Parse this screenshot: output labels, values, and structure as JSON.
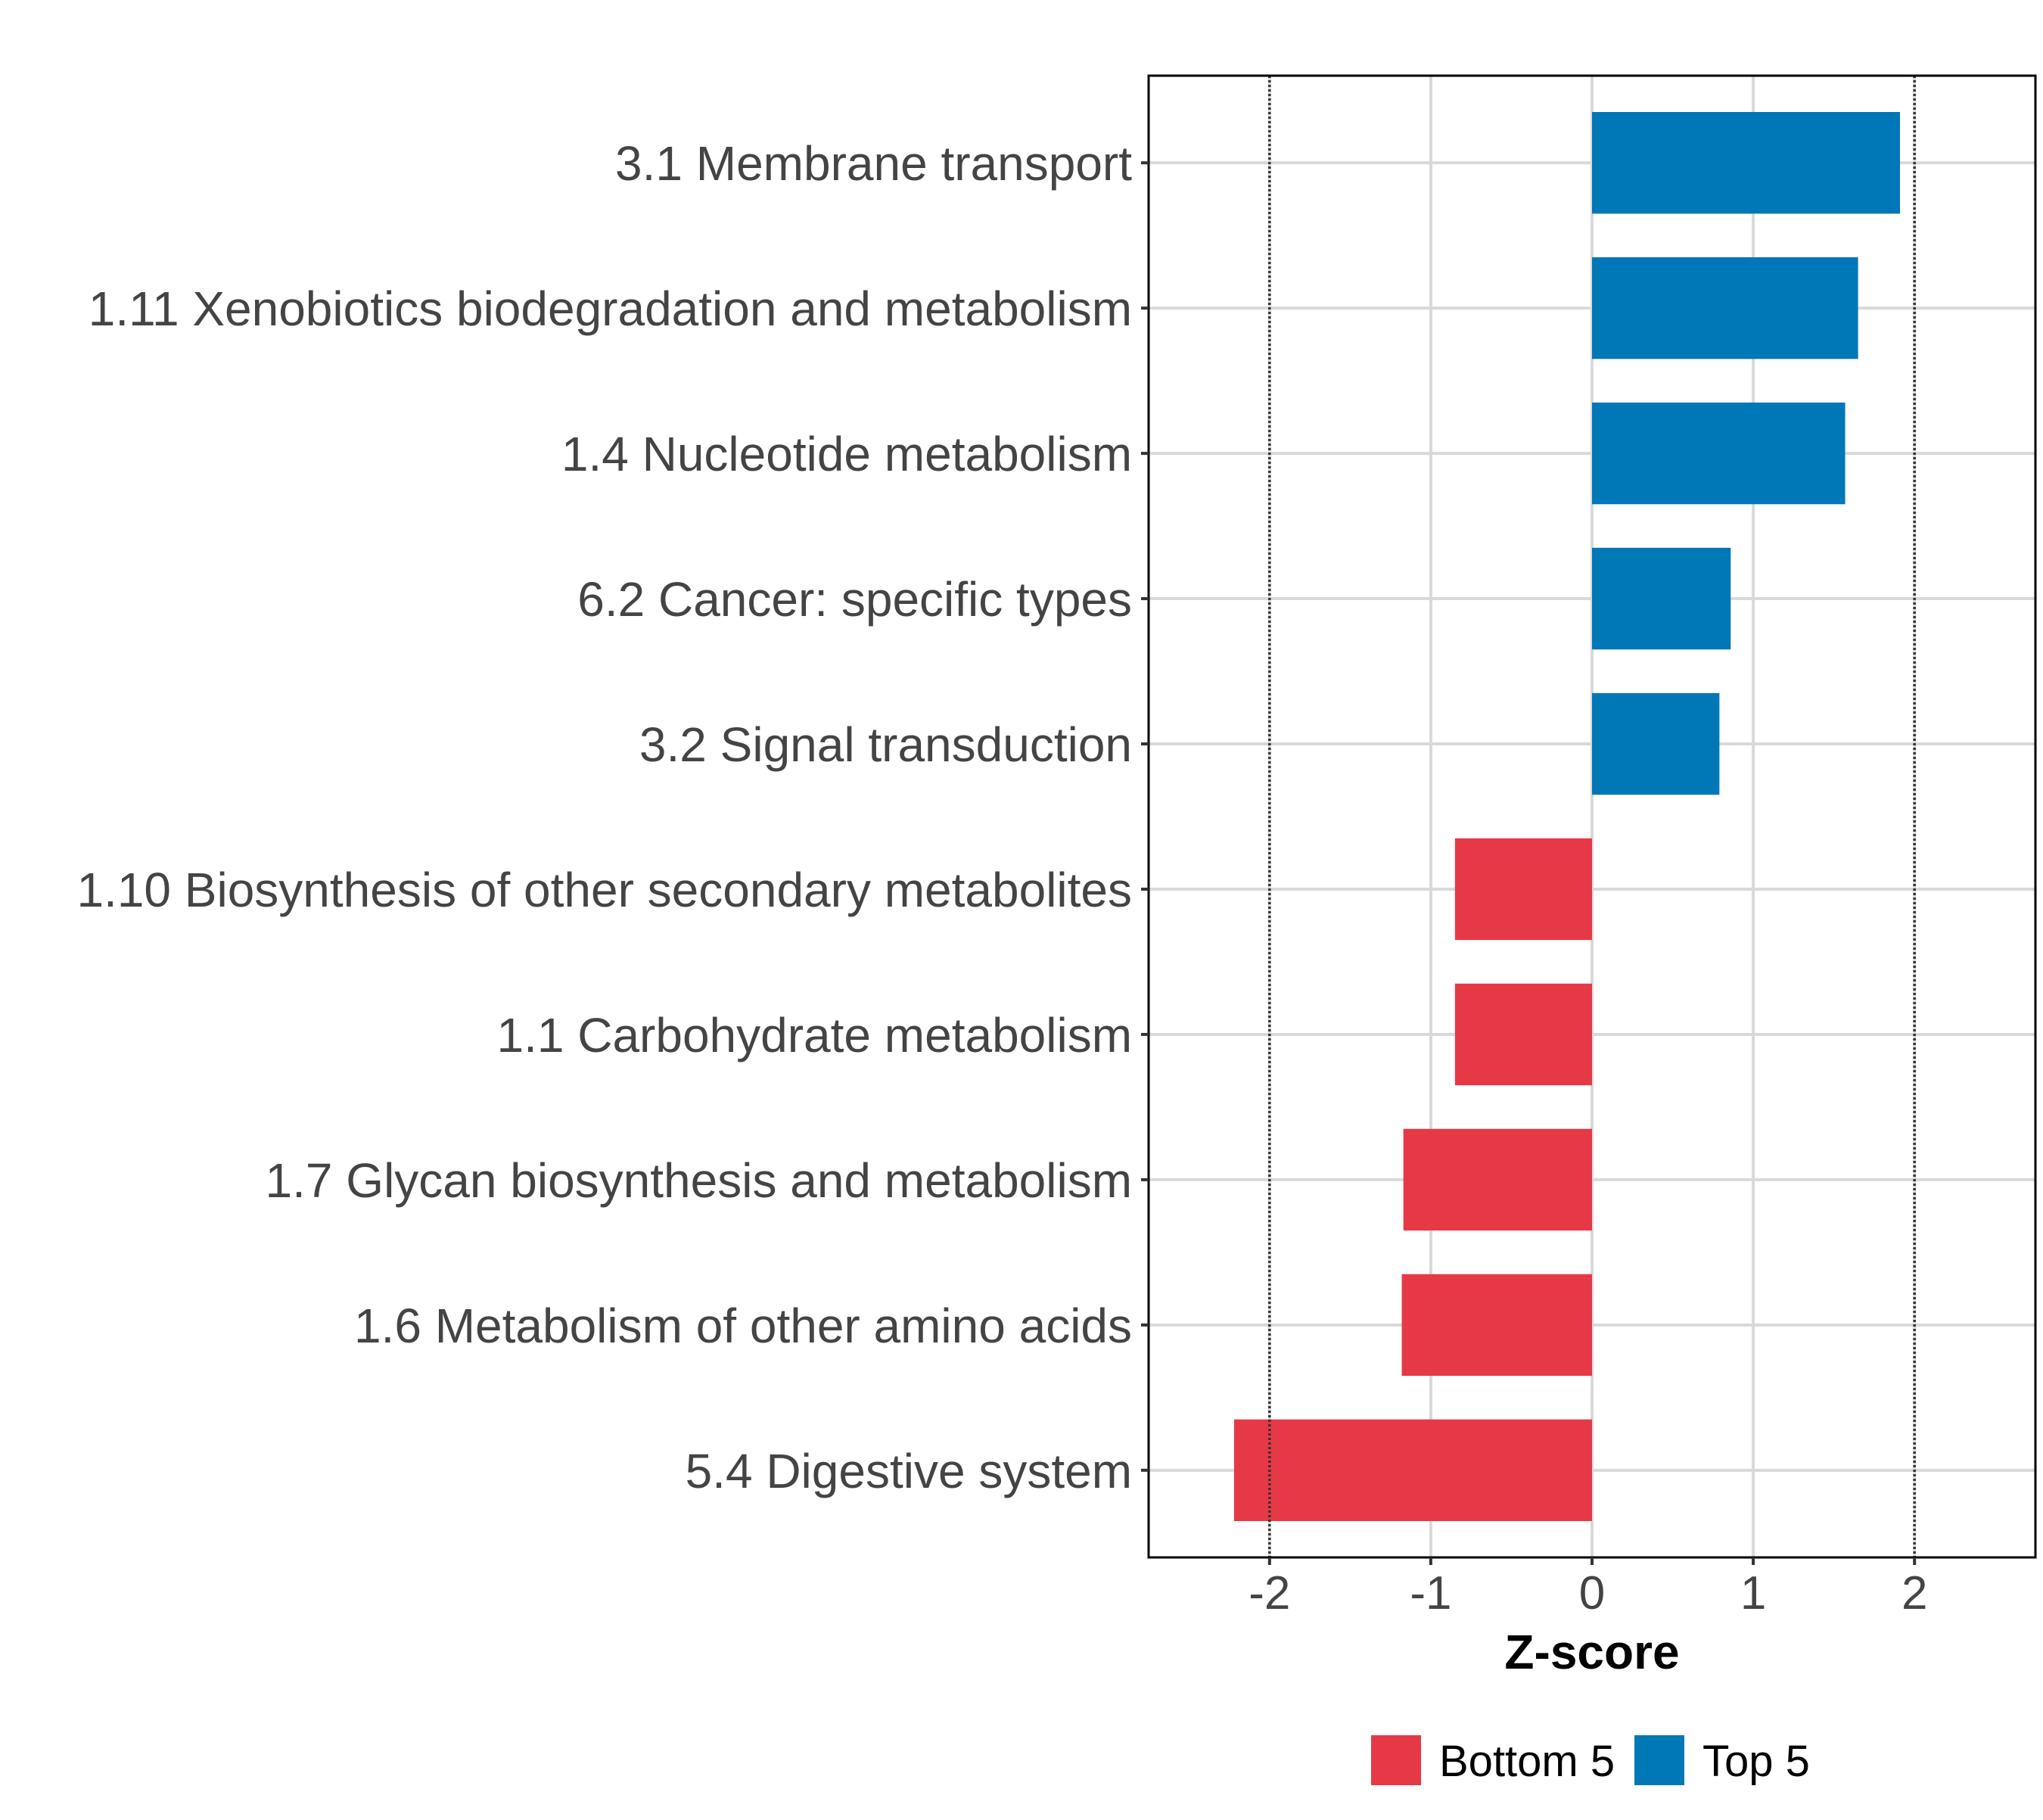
{
  "chart_data": {
    "type": "bar",
    "orientation": "horizontal",
    "title": "",
    "xlabel": "Z-score",
    "ylabel": "",
    "xlim": [
      -2.75,
      2.75
    ],
    "xticks": [
      -2,
      -1,
      0,
      1,
      2
    ],
    "xtick_labels": [
      "-2",
      "-1",
      "0",
      "1",
      "2"
    ],
    "reference_lines": [
      -2,
      2
    ],
    "grid": true,
    "legend_position": "bottom",
    "categories": [
      "3.1 Membrane transport",
      "1.11 Xenobiotics biodegradation and metabolism",
      "1.4 Nucleotide metabolism",
      "6.2 Cancer: specific types",
      "3.2 Signal transduction",
      "1.10 Biosynthesis of other secondary metabolites",
      "1.1 Carbohydrate metabolism",
      "1.7 Glycan biosynthesis and metabolism",
      "1.6 Metabolism of other amino acids",
      "5.4 Digestive system"
    ],
    "values": [
      1.91,
      1.65,
      1.57,
      0.86,
      0.79,
      -0.85,
      -0.85,
      -1.17,
      -1.18,
      -2.22
    ],
    "groups": [
      "Top 5",
      "Top 5",
      "Top 5",
      "Top 5",
      "Top 5",
      "Bottom 5",
      "Bottom 5",
      "Bottom 5",
      "Bottom 5",
      "Bottom 5"
    ],
    "series": [
      {
        "name": "Bottom 5",
        "color": "#E63946"
      },
      {
        "name": "Top 5",
        "color": "#0077B6"
      }
    ]
  }
}
